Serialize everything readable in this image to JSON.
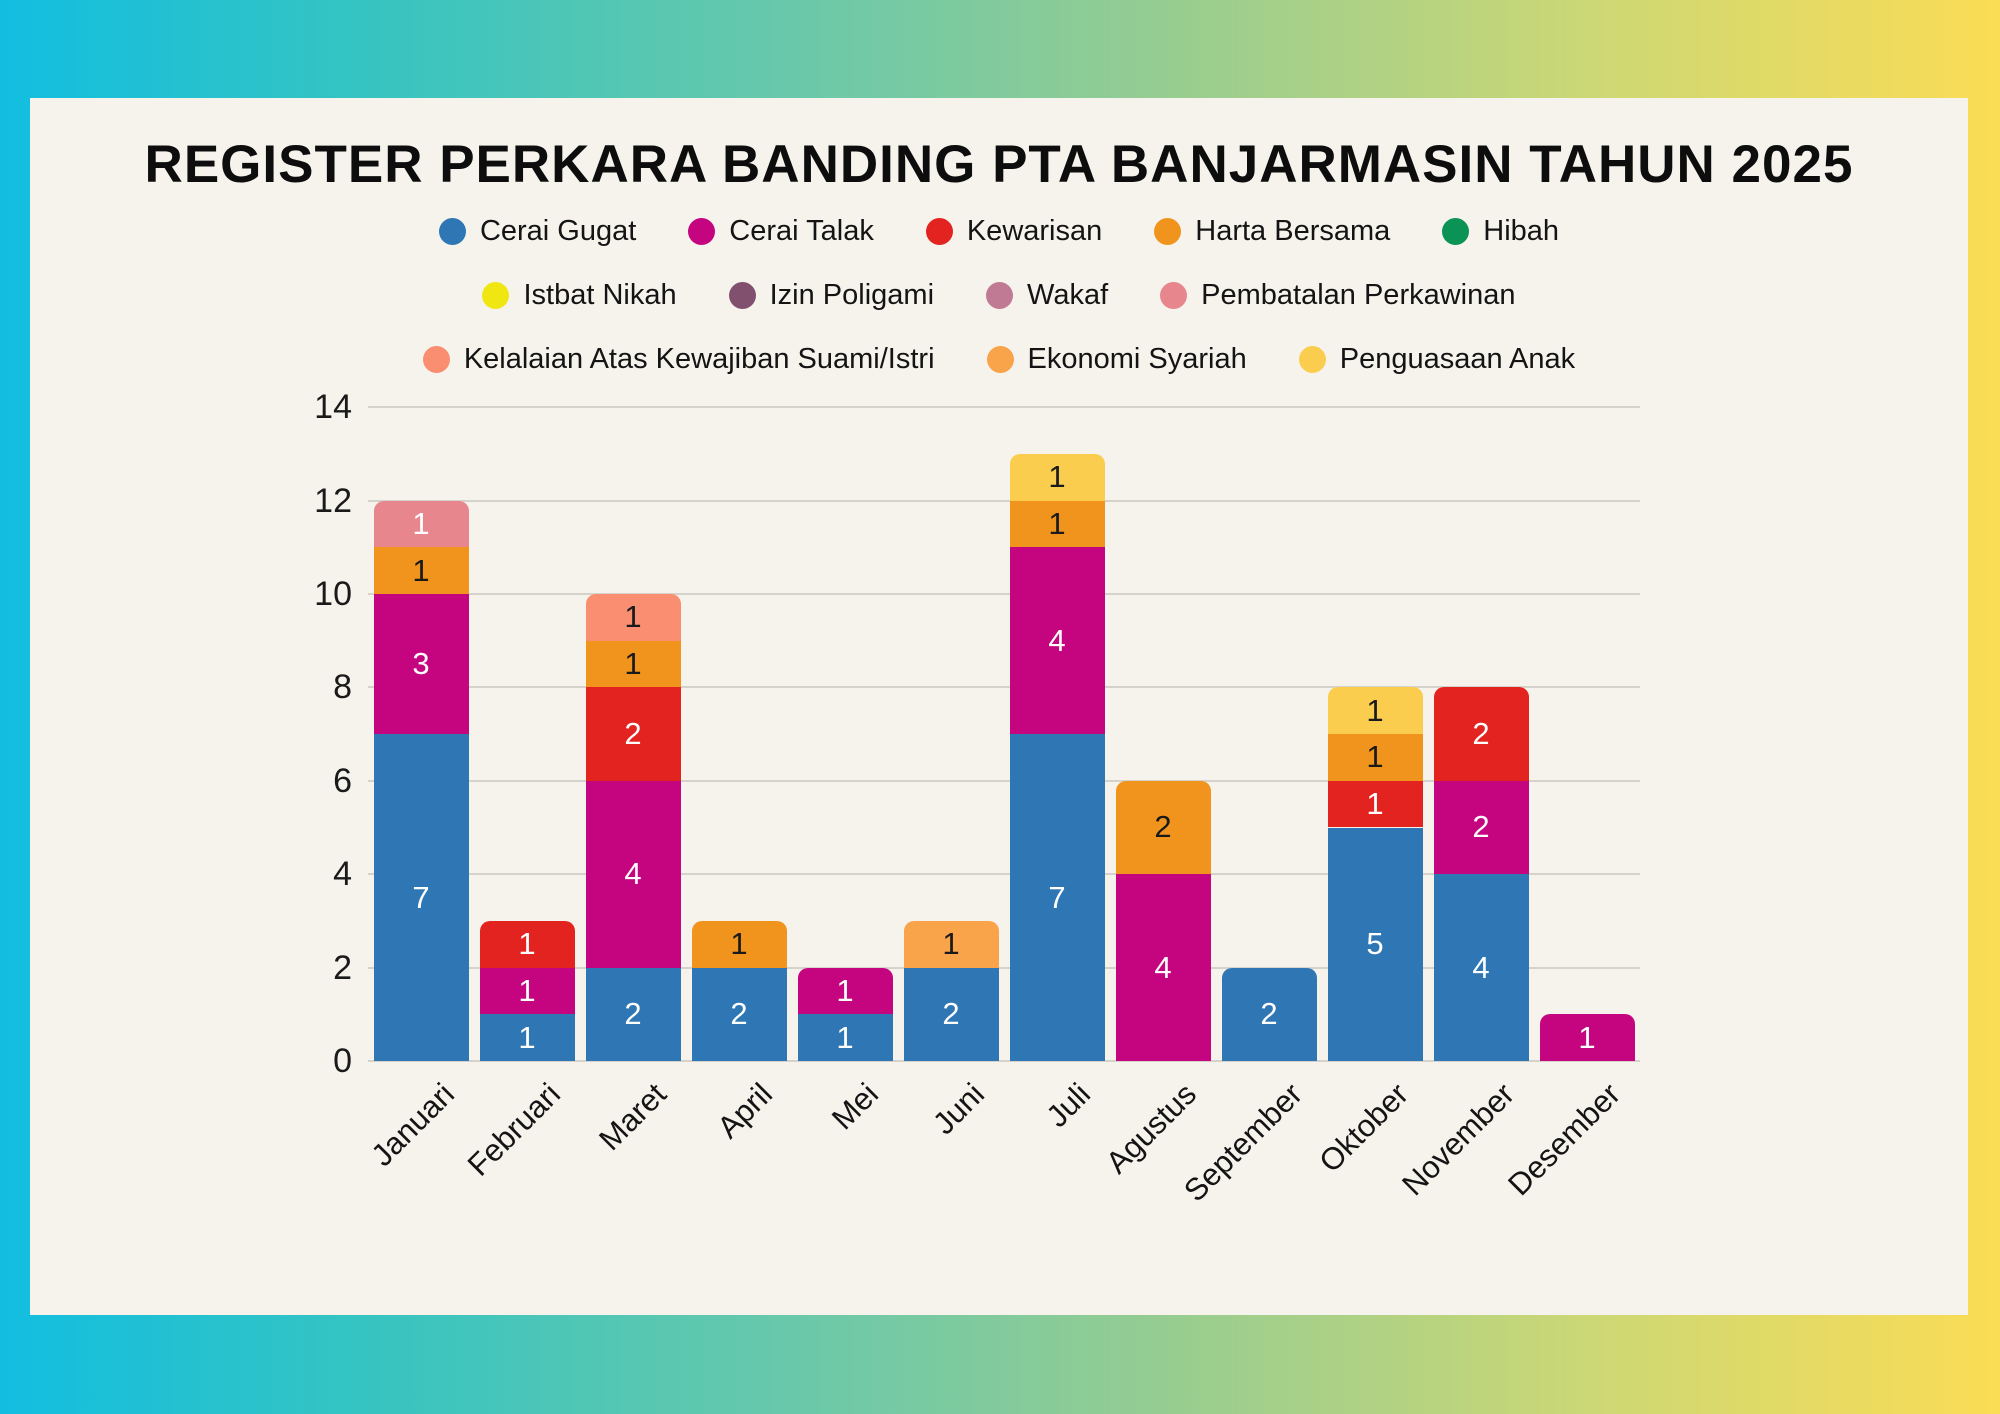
{
  "title": "REGISTER PERKARA BANDING PTA BANJARMASIN TAHUN 2025",
  "colors": {
    "panel_background": "#f6f3ed",
    "frame_gradient_left": "#12bee0",
    "frame_gradient_middle": "#6fc9a7",
    "frame_gradient_right": "#fbdc55",
    "gridline": "#d5d2cc",
    "axis_text": "#1a1a1a"
  },
  "legend_row_sizes": [
    5,
    4,
    3
  ],
  "chart_data": {
    "type": "bar",
    "stacked": true,
    "grid": "horizontal",
    "legend_position": "top",
    "ylim": [
      0,
      14
    ],
    "yticks": [
      "0",
      "2",
      "4",
      "6",
      "8",
      "10",
      "12",
      "14"
    ],
    "categories": [
      "Januari",
      "Februari",
      "Maret",
      "April",
      "Mei",
      "Juni",
      "Juli",
      "Agustus",
      "September",
      "Oktober",
      "November",
      "Desember"
    ],
    "series": [
      {
        "name": "Cerai Gugat",
        "color": "#2e76b4",
        "label_color": "#ffffff",
        "values": [
          7,
          1,
          2,
          2,
          1,
          2,
          7,
          0,
          2,
          5,
          4,
          0
        ]
      },
      {
        "name": "Cerai Talak",
        "color": "#c5047f",
        "label_color": "#ffffff",
        "values": [
          3,
          1,
          4,
          0,
          1,
          0,
          4,
          4,
          0,
          0,
          2,
          1
        ]
      },
      {
        "name": "Kewarisan",
        "color": "#e2231f",
        "label_color": "#ffffff",
        "values": [
          0,
          1,
          2,
          0,
          0,
          0,
          0,
          0,
          0,
          1,
          2,
          0
        ]
      },
      {
        "name": "Harta Bersama",
        "color": "#f0941d",
        "label_color": "#1a1a1a",
        "values": [
          1,
          0,
          1,
          1,
          0,
          0,
          1,
          2,
          0,
          1,
          0,
          0
        ]
      },
      {
        "name": "Hibah",
        "color": "#0b9255",
        "label_color": "#ffffff",
        "values": [
          0,
          0,
          0,
          0,
          0,
          0,
          0,
          0,
          0,
          0,
          0,
          0
        ]
      },
      {
        "name": "Istbat Nikah",
        "color": "#f0e612",
        "label_color": "#1a1a1a",
        "values": [
          0,
          0,
          0,
          0,
          0,
          0,
          0,
          0,
          0,
          0,
          0,
          0
        ]
      },
      {
        "name": "Izin Poligami",
        "color": "#81506f",
        "label_color": "#ffffff",
        "values": [
          0,
          0,
          0,
          0,
          0,
          0,
          0,
          0,
          0,
          0,
          0,
          0
        ]
      },
      {
        "name": "Wakaf",
        "color": "#c17a93",
        "label_color": "#1a1a1a",
        "values": [
          0,
          0,
          0,
          0,
          0,
          0,
          0,
          0,
          0,
          0,
          0,
          0
        ]
      },
      {
        "name": "Pembatalan Perkawinan",
        "color": "#e8868d",
        "label_color": "#ffffff",
        "values": [
          1,
          0,
          0,
          0,
          0,
          0,
          0,
          0,
          0,
          0,
          0,
          0
        ]
      },
      {
        "name": "Kelalaian Atas Kewajiban Suami/Istri",
        "color": "#f98e70",
        "label_color": "#1a1a1a",
        "values": [
          0,
          0,
          1,
          0,
          0,
          0,
          0,
          0,
          0,
          0,
          0,
          0
        ]
      },
      {
        "name": "Ekonomi Syariah",
        "color": "#f9a34b",
        "label_color": "#1a1a1a",
        "values": [
          0,
          0,
          0,
          0,
          0,
          1,
          0,
          0,
          0,
          0,
          0,
          0
        ]
      },
      {
        "name": "Penguasaan Anak",
        "color": "#facd4f",
        "label_color": "#1a1a1a",
        "values": [
          0,
          0,
          0,
          0,
          0,
          0,
          1,
          0,
          0,
          1,
          0,
          0
        ]
      }
    ]
  }
}
